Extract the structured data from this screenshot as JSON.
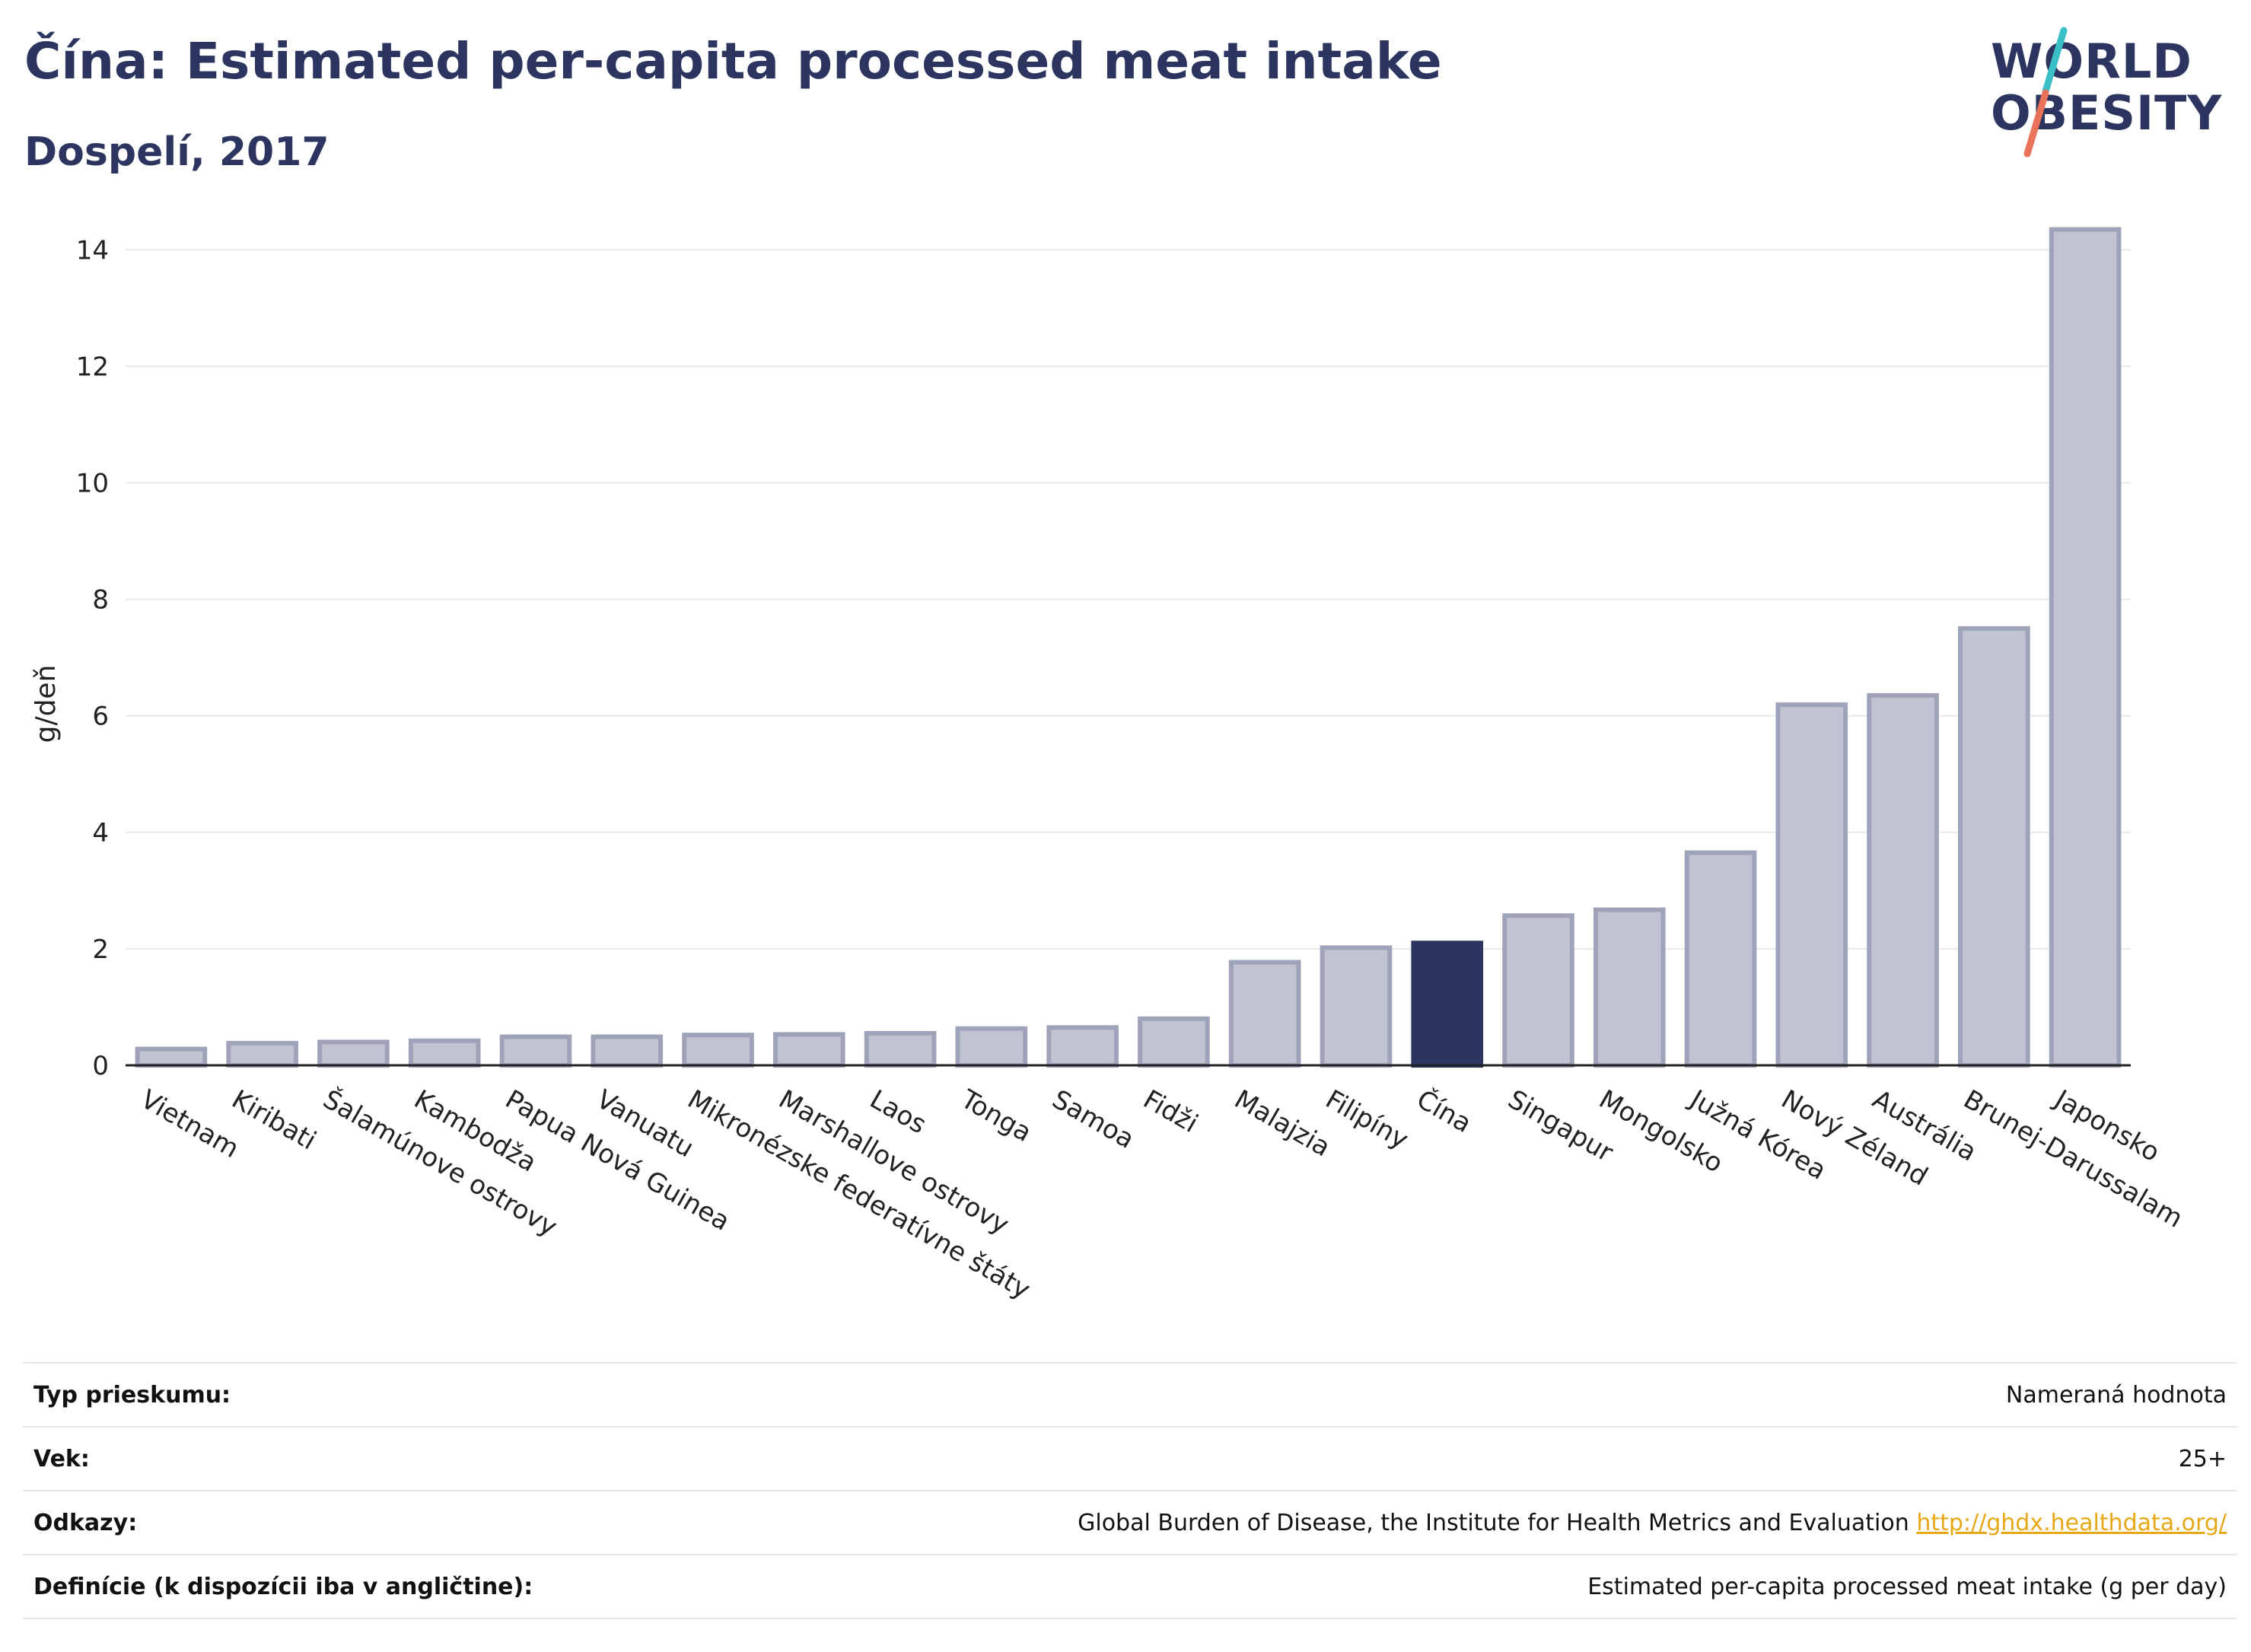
{
  "header": {
    "title": "Čína: Estimated per-capita processed meat intake",
    "subtitle": "Dospelí, 2017"
  },
  "logo": {
    "line1": "WORLD",
    "line2": "OBESITY"
  },
  "colors": {
    "highlight": "#2b3560",
    "bar": "#c0c3d2",
    "bar_stroke": "#9ea3ba",
    "logo_slash_teal": "#3bbfc7",
    "logo_slash_coral": "#e8735a",
    "link": "#e6a817"
  },
  "chart_data": {
    "type": "bar",
    "title": "Čína: Estimated per-capita processed meat intake",
    "subtitle": "Dospelí, 2017",
    "xlabel": "",
    "ylabel": "g/deň",
    "ylim": [
      0,
      14.5
    ],
    "yticks": [
      0,
      2,
      4,
      6,
      8,
      10,
      12,
      14
    ],
    "grid": true,
    "highlight": "Čína",
    "categories": [
      "Vietnam",
      "Kiribati",
      "Šalamúnove ostrovy",
      "Kambodža",
      "Papua Nová Guinea",
      "Vanuatu",
      "Mikronézske federatívne štáty",
      "Marshallove ostrovy",
      "Laos",
      "Tonga",
      "Samoa",
      "Fidži",
      "Malajzia",
      "Filipíny",
      "Čína",
      "Singapur",
      "Mongolsko",
      "Južná Kórea",
      "Nový Zéland",
      "Austrália",
      "Brunej-Darussalam",
      "Japonsko"
    ],
    "values": [
      0.28,
      0.38,
      0.4,
      0.42,
      0.49,
      0.49,
      0.52,
      0.53,
      0.55,
      0.63,
      0.65,
      0.8,
      1.77,
      2.02,
      2.1,
      2.57,
      2.67,
      3.65,
      6.19,
      6.35,
      7.5,
      14.35
    ]
  },
  "info": {
    "rows": [
      {
        "key": "Typ prieskumu:",
        "value": "Nameraná hodnota"
      },
      {
        "key": "Vek:",
        "value": "25+"
      },
      {
        "key": "Odkazy:",
        "value": "Global Burden of Disease, the Institute for Health Metrics and Evaluation",
        "link": "http://ghdx.healthdata.org/"
      },
      {
        "key": "Definície (k dispozícii iba v angličtine):",
        "value": "Estimated per-capita processed meat intake (g per day)"
      }
    ]
  }
}
